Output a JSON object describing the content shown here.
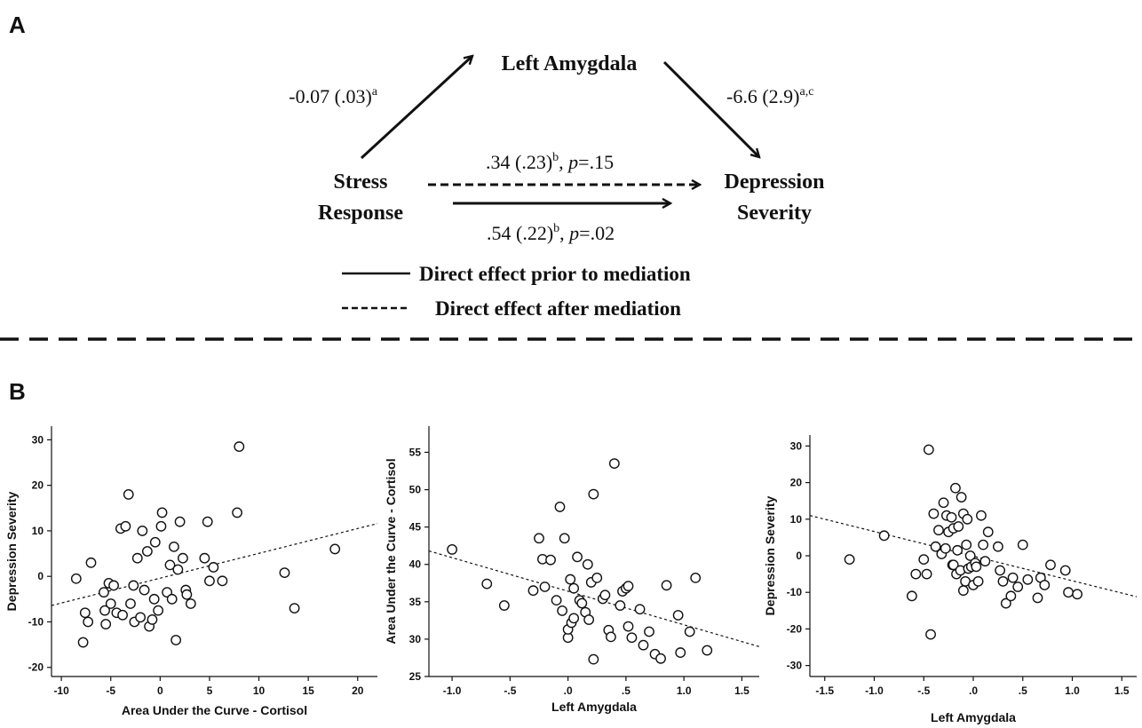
{
  "panel_a": {
    "letter": "A",
    "nodes": {
      "mediator": "Left Amygdala",
      "x_line1": "Stress",
      "x_line2": "Response",
      "y_line1": "Depression",
      "y_line2": "Severity"
    },
    "paths": {
      "a_value": "-0.07 (.03)",
      "a_sup": "a",
      "b_value": "-6.6 (2.9)",
      "b_sup": "a,c",
      "c_prime_value": ".34 (.23)",
      "c_prime_sup": "b",
      "c_prime_p": "p",
      "c_prime_pval": "=.15",
      "c_value": ".54 (.22)",
      "c_sup": "b",
      "c_p": "p",
      "c_pval": "=.02"
    },
    "legend": {
      "solid": "Direct effect prior to mediation",
      "dashed": "Direct effect after mediation"
    }
  },
  "panel_b": {
    "letter": "B"
  },
  "chart_data": [
    {
      "type": "scatter",
      "xlabel": "Area Under the Curve - Cortisol",
      "ylabel": "Depression Severity",
      "xlim": [
        -11,
        22
      ],
      "ylim": [
        -22,
        33
      ],
      "xticks": [
        -10,
        -5,
        0,
        5,
        10,
        15,
        20
      ],
      "yticks": [
        -20,
        -10,
        0,
        10,
        20,
        30
      ],
      "xtick_labels": [
        "-10",
        "-5",
        "0",
        "5",
        "10",
        "15",
        "20"
      ],
      "ytick_labels": [
        "-20",
        "-10",
        "0",
        "10",
        "20",
        "30"
      ],
      "fit_line": {
        "x": [
          -11,
          22
        ],
        "y": [
          -6.4,
          11.6
        ]
      },
      "x": [
        -8.5,
        -7.8,
        -7.6,
        -7.3,
        -7.0,
        -5.7,
        -5.6,
        -5.5,
        -5.2,
        -5.0,
        -4.7,
        -4.4,
        -4.0,
        -3.8,
        -3.5,
        -3.2,
        -3.0,
        -2.7,
        -2.6,
        -2.3,
        -2.0,
        -1.8,
        -1.6,
        -1.3,
        -1.1,
        -0.8,
        -0.6,
        -0.5,
        -0.2,
        0.1,
        0.2,
        0.7,
        1.0,
        1.2,
        1.4,
        1.6,
        1.8,
        2.0,
        2.3,
        2.6,
        2.7,
        3.1,
        4.5,
        4.8,
        5.0,
        5.4,
        6.3,
        7.8,
        8.0,
        12.6,
        13.6,
        17.7
      ],
      "y": [
        -0.5,
        -14.5,
        -8.0,
        -10.0,
        3.0,
        -3.5,
        -7.5,
        -10.5,
        -1.5,
        -6.0,
        -2.0,
        -8.0,
        10.5,
        -8.5,
        11.0,
        18.0,
        -6.0,
        -2.0,
        -10.0,
        4.0,
        -9.0,
        10.0,
        -3.0,
        5.5,
        -11.0,
        -9.5,
        -5.0,
        7.5,
        -7.5,
        11.0,
        14.0,
        -3.5,
        2.5,
        -5.0,
        6.5,
        -14.0,
        1.5,
        12.0,
        4.0,
        -3.0,
        -4.0,
        -6.0,
        4.0,
        12.0,
        -1.0,
        2.0,
        -1.0,
        14.0,
        28.5,
        0.8,
        -7.0,
        6.0
      ]
    },
    {
      "type": "scatter",
      "xlabel": "Left Amygdala",
      "ylabel": "Area Under the Curve - Cortisol",
      "xlim": [
        -1.2,
        1.65
      ],
      "ylim": [
        25,
        58.5
      ],
      "xticks": [
        -1.0,
        -0.5,
        0.0,
        0.5,
        1.0,
        1.5
      ],
      "yticks": [
        25,
        30,
        35,
        40,
        45,
        50,
        55
      ],
      "xtick_labels": [
        "-1.0",
        "-.5",
        ".0",
        ".5",
        "1.0",
        "1.5"
      ],
      "ytick_labels": [
        "25",
        "30",
        "35",
        "40",
        "45",
        "50",
        "55"
      ],
      "fit_line": {
        "x": [
          -1.2,
          1.65
        ],
        "y": [
          41.8,
          29.0
        ]
      },
      "x": [
        -1.0,
        -0.7,
        -0.55,
        -0.3,
        -0.25,
        -0.22,
        -0.2,
        -0.15,
        -0.1,
        -0.07,
        -0.05,
        -0.03,
        0.0,
        0.0,
        0.02,
        0.03,
        0.05,
        0.05,
        0.08,
        0.1,
        0.12,
        0.15,
        0.17,
        0.18,
        0.2,
        0.22,
        0.22,
        0.25,
        0.3,
        0.32,
        0.35,
        0.37,
        0.4,
        0.45,
        0.47,
        0.5,
        0.52,
        0.52,
        0.55,
        0.62,
        0.65,
        0.7,
        0.75,
        0.8,
        0.85,
        0.95,
        0.97,
        1.05,
        1.1,
        1.2
      ],
      "y": [
        42.0,
        37.4,
        34.5,
        36.5,
        43.5,
        40.7,
        37.0,
        40.6,
        35.2,
        47.7,
        33.8,
        43.5,
        30.2,
        31.3,
        38.0,
        32.2,
        32.8,
        36.8,
        41.0,
        35.2,
        34.8,
        33.6,
        40.0,
        32.6,
        37.6,
        27.3,
        49.4,
        38.2,
        35.4,
        35.9,
        31.2,
        30.3,
        53.5,
        34.5,
        36.4,
        36.8,
        37.1,
        31.7,
        30.2,
        34.0,
        29.2,
        31.0,
        28.0,
        27.4,
        37.2,
        33.2,
        28.2,
        31.0,
        38.2,
        28.5
      ]
    },
    {
      "type": "scatter",
      "xlabel": "Left Amygdala",
      "ylabel": "Depression Severity",
      "xlim": [
        -1.65,
        1.65
      ],
      "ylim": [
        -33,
        33
      ],
      "xticks": [
        -1.5,
        -1.0,
        -0.5,
        0.0,
        0.5,
        1.0,
        1.5
      ],
      "yticks": [
        -30,
        -20,
        -10,
        0,
        10,
        20,
        30
      ],
      "xtick_labels": [
        "-1.5",
        "-1.0",
        "-.5",
        ".0",
        ".5",
        "1.0",
        "1.5"
      ],
      "ytick_labels": [
        "-30",
        "-20",
        "-10",
        "0",
        "10",
        "20",
        "30"
      ],
      "fit_line": {
        "x": [
          -1.65,
          1.65
        ],
        "y": [
          11.0,
          -11.2
        ]
      },
      "x": [
        -1.25,
        -0.9,
        -0.62,
        -0.58,
        -0.5,
        -0.47,
        -0.45,
        -0.43,
        -0.4,
        -0.38,
        -0.35,
        -0.32,
        -0.3,
        -0.28,
        -0.27,
        -0.25,
        -0.22,
        -0.21,
        -0.2,
        -0.2,
        -0.18,
        -0.17,
        -0.16,
        -0.15,
        -0.13,
        -0.12,
        -0.1,
        -0.1,
        -0.08,
        -0.07,
        -0.06,
        -0.05,
        -0.03,
        -0.02,
        0.0,
        0.02,
        0.03,
        0.05,
        0.08,
        0.1,
        0.12,
        0.15,
        0.25,
        0.27,
        0.3,
        0.33,
        0.38,
        0.4,
        0.45,
        0.5,
        0.55,
        0.65,
        0.68,
        0.72,
        0.78,
        0.93,
        0.96,
        1.05
      ],
      "y": [
        -1.0,
        5.5,
        -11.0,
        -5.0,
        -1.0,
        -5.0,
        29.0,
        -21.5,
        11.5,
        2.5,
        7.0,
        0.5,
        14.5,
        2.0,
        11.0,
        6.5,
        10.5,
        -2.5,
        7.5,
        -2.5,
        18.5,
        -5.0,
        1.5,
        8.0,
        -4.0,
        16.0,
        -9.5,
        11.5,
        -7.0,
        3.0,
        10.0,
        -3.5,
        0.0,
        -3.0,
        -8.0,
        -2.0,
        -3.0,
        -7.0,
        11.0,
        3.0,
        -1.5,
        6.5,
        2.5,
        -4.0,
        -7.0,
        -13.0,
        -11.0,
        -6.0,
        -8.5,
        3.0,
        -6.5,
        -11.5,
        -6.0,
        -8.0,
        -2.5,
        -4.0,
        -10.0,
        -10.5
      ]
    }
  ]
}
